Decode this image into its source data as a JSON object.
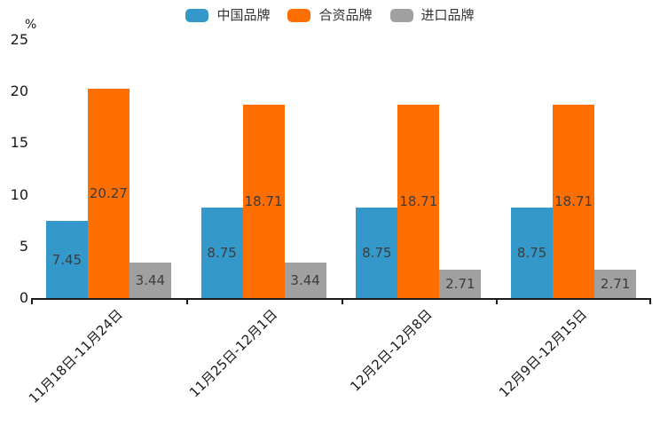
{
  "chart_data": {
    "type": "bar",
    "title": "",
    "unit_label": "%",
    "categories": [
      "11月18日-11月24日",
      "11月25日-12月1日",
      "12月2日-12月8日",
      "12月9日-12月15日"
    ],
    "series": [
      {
        "name": "中国品牌",
        "color": "#3498CB",
        "values": [
          7.45,
          8.75,
          8.75,
          8.75
        ]
      },
      {
        "name": "合资品牌",
        "color": "#FF6E00",
        "values": [
          20.27,
          18.71,
          18.71,
          18.71
        ]
      },
      {
        "name": "进口品牌",
        "color": "#A0A0A0",
        "values": [
          3.44,
          3.44,
          2.71,
          2.71
        ]
      }
    ],
    "ylim": [
      0,
      25
    ],
    "yticks": [
      0,
      5,
      10,
      15,
      20,
      25
    ],
    "grid": false,
    "legend_position": "top",
    "value_labels_visible": true,
    "value_label_color": "#3C3C3C",
    "axis_color": "#1A1A1A"
  }
}
